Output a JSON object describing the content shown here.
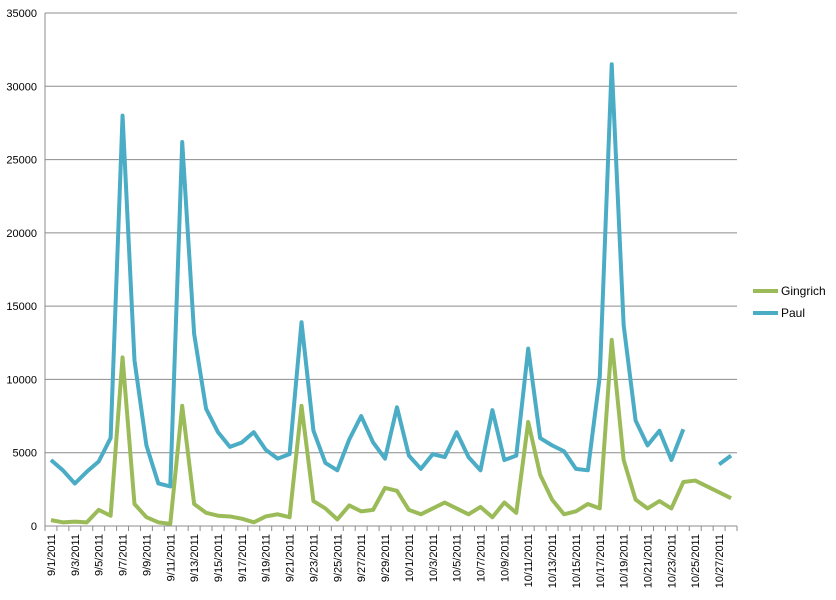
{
  "chart_data": {
    "type": "line",
    "ylim": [
      0,
      35000
    ],
    "yticks": [
      "0",
      "5000",
      "10000",
      "15000",
      "20000",
      "25000",
      "30000",
      "35000"
    ],
    "ytick_values": [
      0,
      5000,
      10000,
      15000,
      20000,
      25000,
      30000,
      35000
    ],
    "grid": true,
    "legend": "right",
    "x": [
      "9/1/2011",
      "9/2/2011",
      "9/3/2011",
      "9/4/2011",
      "9/5/2011",
      "9/6/2011",
      "9/7/2011",
      "9/8/2011",
      "9/9/2011",
      "9/10/2011",
      "9/11/2011",
      "9/12/2011",
      "9/13/2011",
      "9/14/2011",
      "9/15/2011",
      "9/16/2011",
      "9/17/2011",
      "9/18/2011",
      "9/19/2011",
      "9/20/2011",
      "9/21/2011",
      "9/22/2011",
      "9/23/2011",
      "9/24/2011",
      "9/25/2011",
      "9/26/2011",
      "9/27/2011",
      "9/28/2011",
      "9/29/2011",
      "9/30/2011",
      "10/1/2011",
      "10/2/2011",
      "10/3/2011",
      "10/4/2011",
      "10/5/2011",
      "10/6/2011",
      "10/7/2011",
      "10/8/2011",
      "10/9/2011",
      "10/10/2011",
      "10/11/2011",
      "10/12/2011",
      "10/13/2011",
      "10/14/2011",
      "10/15/2011",
      "10/16/2011",
      "10/17/2011",
      "10/18/2011",
      "10/19/2011",
      "10/20/2011",
      "10/21/2011",
      "10/22/2011",
      "10/23/2011",
      "10/24/2011",
      "10/25/2011",
      "10/26/2011",
      "10/27/2011",
      "10/28/2011"
    ],
    "xtick_labels": [
      "9/1/2011",
      "9/3/2011",
      "9/5/2011",
      "9/7/2011",
      "9/9/2011",
      "9/11/2011",
      "9/13/2011",
      "9/15/2011",
      "9/17/2011",
      "9/19/2011",
      "9/21/2011",
      "9/23/2011",
      "9/25/2011",
      "9/27/2011",
      "9/29/2011",
      "10/1/2011",
      "10/3/2011",
      "10/5/2011",
      "10/7/2011",
      "10/9/2011",
      "10/11/2011",
      "10/13/2011",
      "10/15/2011",
      "10/17/2011",
      "10/19/2011",
      "10/21/2011",
      "10/23/2011",
      "10/25/2011",
      "10/27/2011"
    ],
    "series": [
      {
        "name": "Gingrich",
        "color": "#9BBB59",
        "values": [
          400,
          250,
          300,
          250,
          1100,
          700,
          11500,
          1500,
          600,
          250,
          150,
          8200,
          1500,
          900,
          700,
          650,
          500,
          250,
          650,
          800,
          600,
          8200,
          1700,
          1200,
          450,
          1400,
          1000,
          1100,
          2600,
          2400,
          1100,
          800,
          1200,
          1600,
          1200,
          800,
          1300,
          600,
          1600,
          900,
          7100,
          3500,
          1800,
          800,
          1000,
          1500,
          1200,
          12700,
          4500,
          1800,
          1200,
          1700,
          1200,
          3000,
          3100,
          2700,
          2300,
          1900
        ]
      },
      {
        "name": "Paul",
        "color": "#4BACC6",
        "values": [
          4500,
          3800,
          2900,
          3700,
          4400,
          6000,
          28000,
          11300,
          5500,
          2900,
          2700,
          26200,
          13100,
          8000,
          6400,
          5400,
          5700,
          6400,
          5200,
          4600,
          4900,
          13900,
          6500,
          4300,
          3800,
          5900,
          7500,
          5700,
          4600,
          8100,
          4800,
          3900,
          4900,
          4700,
          6400,
          4700,
          3800,
          7900,
          4500,
          4800,
          12100,
          6000,
          5500,
          5100,
          3900,
          3800,
          10200,
          31500,
          13700,
          7200,
          5500,
          6500,
          4500,
          6600,
          null,
          null,
          4200,
          4800
        ]
      }
    ]
  }
}
